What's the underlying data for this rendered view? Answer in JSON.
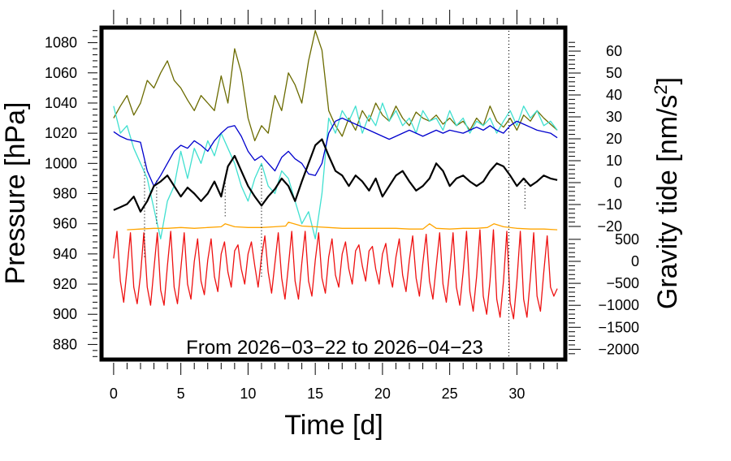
{
  "chart_data": {
    "type": "line",
    "annotation": "From 2026−03−22 to 2026−04−23",
    "xlabel": "Time [d]",
    "xlim": [
      -0.9,
      33.6
    ],
    "xticks": [
      0,
      5,
      10,
      15,
      20,
      25,
      30
    ],
    "xtick_labels": [
      "0",
      "5",
      "10",
      "15",
      "20",
      "25",
      "30"
    ],
    "ylabel_left": "Pressure [hPa]",
    "ylim_left": [
      870,
      1090
    ],
    "yticks_left": [
      880,
      900,
      920,
      940,
      960,
      980,
      1000,
      1020,
      1040,
      1060,
      1080
    ],
    "ytick_labels_left": [
      "880",
      "900",
      "920",
      "940",
      "960",
      "980",
      "1000",
      "1020",
      "1040",
      "1060",
      "1080"
    ],
    "ylabel_right": "Gravity tide [nm/s²]",
    "ylabel_right_base": "Gravity tide [nm/s",
    "ylabel_right_sup": "2",
    "ylabel_right_close": "]",
    "right_axis_upper": {
      "ticks": [
        -20,
        -10,
        0,
        10,
        20,
        30,
        40,
        50,
        60
      ],
      "labels": [
        "−20",
        "−10",
        "0",
        "10",
        "20",
        "30",
        "40",
        "50",
        "60"
      ]
    },
    "right_axis_lower": {
      "ticks": [
        -2000,
        -1500,
        -1000,
        -500,
        0,
        500
      ],
      "labels": [
        "−2000",
        "−1500",
        "−1000",
        "−500",
        "0",
        "500"
      ]
    },
    "grid": false,
    "legend": "none",
    "series": [
      {
        "color": "#6b6b00",
        "x": [
          0,
          0.5,
          1,
          1.5,
          2,
          2.5,
          3,
          3.5,
          4,
          4.5,
          5,
          5.5,
          6,
          6.5,
          7,
          7.5,
          8,
          8.5,
          9,
          9.5,
          10,
          10.5,
          11,
          11.5,
          12,
          12.5,
          13,
          13.5,
          14,
          14.5,
          15,
          15.5,
          16,
          16.5,
          17,
          17.5,
          18,
          18.5,
          19,
          19.5,
          20,
          20.5,
          21,
          21.5,
          22,
          22.5,
          23,
          23.5,
          24,
          24.5,
          25,
          25.5,
          26,
          26.5,
          27,
          27.5,
          28,
          28.5,
          29,
          29.5,
          30,
          30.5,
          31,
          31.5,
          32,
          32.5,
          33
        ],
        "y": [
          1030,
          1038,
          1045,
          1032,
          1040,
          1055,
          1050,
          1060,
          1068,
          1055,
          1050,
          1042,
          1035,
          1045,
          1040,
          1035,
          1058,
          1040,
          1076,
          1060,
          1030,
          1015,
          1025,
          1020,
          1045,
          1035,
          1060,
          1052,
          1040,
          1068,
          1088,
          1075,
          1035,
          1025,
          1018,
          1030,
          1022,
          1035,
          1028,
          1040,
          1032,
          1028,
          1038,
          1030,
          1025,
          1034,
          1030,
          1028,
          1032,
          1026,
          1030,
          1025,
          1028,
          1022,
          1030,
          1025,
          1038,
          1028,
          1024,
          1030,
          1022,
          1032,
          1028,
          1035,
          1030,
          1026,
          1022
        ]
      },
      {
        "color": "#40e0d0",
        "x": [
          0,
          0.5,
          1,
          1.5,
          2,
          2.5,
          3,
          3.5,
          4,
          4.5,
          5,
          5.5,
          6,
          6.5,
          7,
          7.5,
          8,
          8.5,
          9,
          9.5,
          10,
          10.5,
          11,
          11.5,
          12,
          12.5,
          13,
          13.5,
          14,
          14.5,
          15,
          15.5,
          16,
          16.5,
          17,
          17.5,
          18,
          18.5,
          19,
          19.5,
          20,
          20.5,
          21,
          21.5,
          22,
          22.5,
          23,
          23.5,
          24,
          24.5,
          25,
          25.5,
          26,
          26.5,
          27,
          27.5,
          28,
          28.5,
          29,
          29.5,
          30,
          30.5,
          31,
          31.5,
          32,
          32.5,
          33
        ],
        "y": [
          1038,
          1020,
          1025,
          1010,
          1000,
          990,
          970,
          950,
          975,
          985,
          1008,
          990,
          1010,
          1000,
          1015,
          1005,
          1020,
          1010,
          1000,
          985,
          975,
          990,
          1000,
          985,
          980,
          995,
          990,
          975,
          960,
          968,
          950,
          980,
          1030,
          1020,
          1035,
          1028,
          1038,
          1020,
          1032,
          1025,
          1040,
          1028,
          1035,
          1025,
          1030,
          1020,
          1035,
          1028,
          1030,
          1022,
          1035,
          1025,
          1030,
          1020,
          1028,
          1025,
          1030,
          1020,
          1028,
          1035,
          1025,
          1038,
          1030,
          1035,
          1025,
          1028,
          1022
        ]
      },
      {
        "color": "#0000cd",
        "x": [
          0,
          0.5,
          1,
          1.5,
          2,
          2.5,
          3,
          3.5,
          4,
          4.5,
          5,
          5.5,
          6,
          6.5,
          7,
          7.5,
          8,
          8.5,
          9,
          9.5,
          10,
          10.5,
          11,
          11.5,
          12,
          12.5,
          13,
          13.5,
          14,
          14.5,
          15,
          15.5,
          16,
          16.5,
          17,
          17.5,
          18,
          18.5,
          19,
          19.5,
          20,
          20.5,
          21,
          21.5,
          22,
          22.5,
          23,
          23.5,
          24,
          24.5,
          25,
          25.5,
          26,
          26.5,
          27,
          27.5,
          28,
          28.5,
          29,
          29.5,
          30,
          30.5,
          31,
          31.5,
          32,
          32.5,
          33
        ],
        "y": [
          1021,
          1018,
          1016,
          1015,
          1014,
          995,
          985,
          992,
          1000,
          1008,
          1012,
          1010,
          1015,
          1012,
          1008,
          1015,
          1020,
          1024,
          1025,
          1018,
          1008,
          1002,
          1005,
          1000,
          995,
          1004,
          1008,
          1003,
          1000,
          993,
          992,
          1000,
          1020,
          1028,
          1030,
          1028,
          1026,
          1024,
          1022,
          1020,
          1018,
          1016,
          1018,
          1020,
          1022,
          1020,
          1018,
          1020,
          1022,
          1020,
          1022,
          1021,
          1020,
          1022,
          1024,
          1022,
          1025,
          1022,
          1020,
          1025,
          1028,
          1026,
          1024,
          1022,
          1021,
          1020,
          1017
        ]
      },
      {
        "color": "#000000",
        "x": [
          0,
          0.5,
          1,
          1.5,
          2,
          2.5,
          3,
          3.5,
          4,
          4.5,
          5,
          5.5,
          6,
          6.5,
          7,
          7.5,
          8,
          8.5,
          9,
          9.5,
          10,
          10.5,
          11,
          11.5,
          12,
          12.5,
          13,
          13.5,
          14,
          14.5,
          15,
          15.5,
          16,
          16.5,
          17,
          17.5,
          18,
          18.5,
          19,
          19.5,
          20,
          20.5,
          21,
          21.5,
          22,
          22.5,
          23,
          23.5,
          24,
          24.5,
          25,
          25.5,
          26,
          26.5,
          27,
          27.5,
          28,
          28.5,
          29,
          29.5,
          30,
          30.5,
          31,
          31.5,
          32,
          32.5,
          33
        ],
        "y": [
          969,
          971,
          973,
          978,
          968,
          975,
          985,
          988,
          992,
          985,
          978,
          984,
          980,
          975,
          980,
          988,
          978,
          998,
          1005,
          995,
          985,
          978,
          972,
          978,
          983,
          990,
          985,
          975,
          988,
          1000,
          1012,
          1016,
          1005,
          995,
          992,
          985,
          992,
          988,
          982,
          990,
          978,
          985,
          992,
          995,
          988,
          982,
          985,
          990,
          1000,
          995,
          985,
          990,
          992,
          988,
          985,
          988,
          995,
          1000,
          998,
          992,
          985,
          990,
          985,
          988,
          992,
          990,
          989
        ]
      },
      {
        "color": "#ffa500",
        "x": [
          1,
          2,
          3,
          4,
          5,
          6,
          7,
          8,
          8.3,
          9,
          10,
          11,
          12,
          12.8,
          13,
          14,
          15,
          16,
          17,
          18,
          19,
          20,
          21,
          22,
          23,
          23.5,
          24,
          25,
          26,
          27,
          27.8,
          28.3,
          29,
          30,
          31,
          32,
          33
        ],
        "y": [
          956,
          956.5,
          957,
          957,
          957.5,
          957,
          957.5,
          958,
          960,
          958,
          957.5,
          957.5,
          958,
          958.5,
          961,
          958.5,
          958,
          957.5,
          957,
          957,
          957,
          957,
          957,
          956.5,
          956.5,
          960,
          957,
          956.5,
          957,
          957,
          957.5,
          960,
          958,
          957,
          956.5,
          956.5,
          956
        ]
      },
      {
        "color": "#ee1111",
        "x": [
          0,
          0.25,
          0.5,
          0.75,
          1,
          1.25,
          1.5,
          1.75,
          2,
          2.25,
          2.5,
          2.75,
          3,
          3.25,
          3.5,
          3.75,
          4,
          4.25,
          4.5,
          4.75,
          5,
          5.25,
          5.5,
          5.75,
          6,
          6.25,
          6.5,
          6.75,
          7,
          7.25,
          7.5,
          7.75,
          8,
          8.25,
          8.5,
          8.75,
          9,
          9.25,
          9.5,
          9.75,
          10,
          10.25,
          10.5,
          10.75,
          11,
          11.25,
          11.5,
          11.75,
          12,
          12.25,
          12.5,
          12.75,
          13,
          13.25,
          13.5,
          13.75,
          14,
          14.25,
          14.5,
          14.75,
          15,
          15.25,
          15.5,
          15.75,
          16,
          16.25,
          16.5,
          16.75,
          17,
          17.25,
          17.5,
          17.75,
          18,
          18.25,
          18.5,
          18.75,
          19,
          19.25,
          19.5,
          19.75,
          20,
          20.25,
          20.5,
          20.75,
          21,
          21.25,
          21.5,
          21.75,
          22,
          22.25,
          22.5,
          22.75,
          23,
          23.25,
          23.5,
          23.75,
          24,
          24.25,
          24.5,
          24.75,
          25,
          25.25,
          25.5,
          25.75,
          26,
          26.25,
          26.5,
          26.75,
          27,
          27.25,
          27.5,
          27.75,
          28,
          28.25,
          28.5,
          28.75,
          29,
          29.25,
          29.5,
          29.75,
          30,
          30.25,
          30.5,
          30.75,
          31,
          31.25,
          31.5,
          31.75,
          32,
          32.25,
          32.5,
          32.75,
          33
        ],
        "y": [
          937,
          955,
          922,
          908,
          930,
          954,
          918,
          907,
          926,
          954,
          918,
          906,
          930,
          954,
          916,
          906,
          932,
          955,
          918,
          907,
          930,
          954,
          920,
          910,
          935,
          950,
          922,
          913,
          936,
          950,
          925,
          915,
          940,
          948,
          928,
          918,
          942,
          946,
          930,
          920,
          940,
          948,
          932,
          918,
          938,
          952,
          928,
          914,
          934,
          954,
          924,
          910,
          932,
          955,
          922,
          910,
          934,
          955,
          922,
          912,
          936,
          954,
          924,
          914,
          938,
          950,
          926,
          918,
          940,
          948,
          930,
          920,
          942,
          946,
          932,
          922,
          942,
          945,
          930,
          920,
          940,
          947,
          928,
          918,
          938,
          950,
          926,
          915,
          936,
          952,
          924,
          912,
          934,
          953,
          922,
          910,
          932,
          954,
          920,
          908,
          930,
          954,
          918,
          906,
          928,
          955,
          915,
          902,
          925,
          956,
          912,
          900,
          922,
          956,
          910,
          898,
          922,
          955,
          908,
          897,
          922,
          955,
          910,
          898,
          924,
          954,
          912,
          902,
          928,
          952,
          918,
          912,
          917
        ]
      }
    ],
    "scatter_bursts": [
      {
        "color": "#000000",
        "x": 2.3,
        "y_range": [
          938,
          1002
        ]
      },
      {
        "color": "#000000",
        "x": 3.2,
        "y_range": [
          960,
          990
        ]
      },
      {
        "color": "#000000",
        "x": 8.3,
        "y_range": [
          965,
          990
        ]
      },
      {
        "color": "#000000",
        "x": 11.0,
        "y_range": [
          925,
          1000
        ]
      },
      {
        "color": "#000000",
        "x": 29.4,
        "y_range": [
          870,
          1090
        ]
      },
      {
        "color": "#000000",
        "x": 30.6,
        "y_range": [
          970,
          990
        ]
      }
    ]
  }
}
